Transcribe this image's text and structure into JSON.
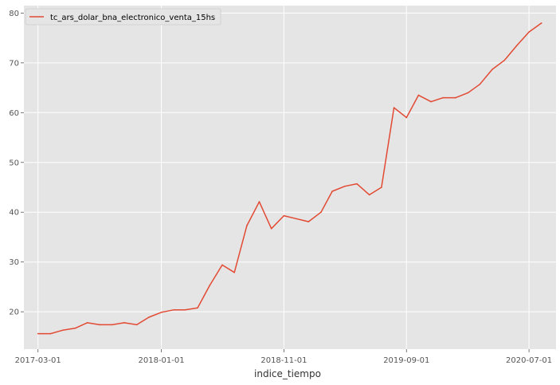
{
  "chart_data": {
    "type": "line",
    "xlabel": "indice_tiempo",
    "ylabel": "",
    "x_tick_labels": [
      "2017-03-01",
      "2018-01-01",
      "2018-11-01",
      "2019-09-01",
      "2020-07-01"
    ],
    "y_tick_labels": [
      "20",
      "30",
      "40",
      "50",
      "60",
      "70",
      "80"
    ],
    "ylim": [
      12.5,
      81.5
    ],
    "grid": true,
    "legend_position": "top-left",
    "colors": {
      "background": "#e5e5e5",
      "grid": "#ffffff",
      "line": "#e24a33"
    },
    "series": [
      {
        "name": "tc_ars_dolar_bna_electronico_venta_15hs",
        "x": [
          "2017-03-01",
          "2017-04-01",
          "2017-05-01",
          "2017-06-01",
          "2017-07-01",
          "2017-08-01",
          "2017-09-01",
          "2017-10-01",
          "2017-11-01",
          "2017-12-01",
          "2018-01-01",
          "2018-02-01",
          "2018-03-01",
          "2018-04-01",
          "2018-05-01",
          "2018-06-01",
          "2018-07-01",
          "2018-08-01",
          "2018-09-01",
          "2018-10-01",
          "2018-11-01",
          "2018-12-01",
          "2019-01-01",
          "2019-02-01",
          "2019-03-01",
          "2019-04-01",
          "2019-05-01",
          "2019-06-01",
          "2019-07-01",
          "2019-08-01",
          "2019-09-01",
          "2019-10-01",
          "2019-11-01",
          "2019-12-01",
          "2020-01-01",
          "2020-02-01",
          "2020-03-01",
          "2020-04-01",
          "2020-05-01",
          "2020-06-01",
          "2020-07-01",
          "2020-08-01"
        ],
        "values": [
          15.6,
          15.6,
          16.3,
          16.7,
          17.8,
          17.4,
          17.4,
          17.8,
          17.4,
          18.9,
          19.9,
          20.4,
          20.4,
          20.8,
          25.3,
          29.4,
          27.9,
          37.3,
          42.1,
          36.7,
          39.3,
          38.7,
          38.1,
          40.0,
          44.2,
          45.2,
          45.7,
          43.5,
          45.0,
          61.0,
          59.0,
          63.5,
          62.2,
          63.0,
          63.0,
          64.0,
          65.7,
          68.7,
          70.5,
          73.5,
          76.2,
          78.0
        ]
      }
    ]
  }
}
